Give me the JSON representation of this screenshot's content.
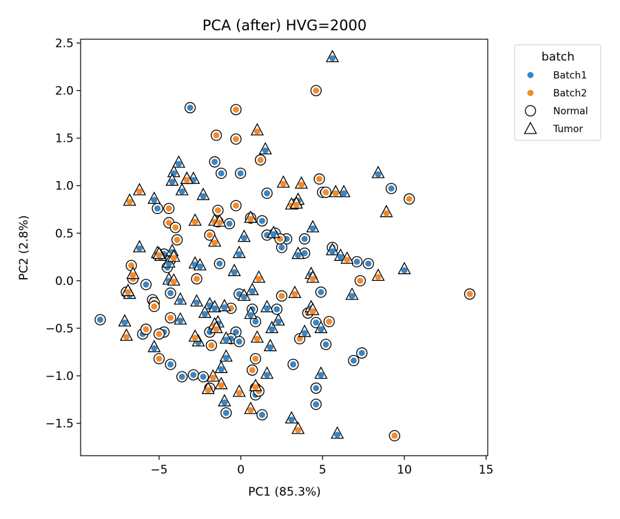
{
  "chart_data": {
    "type": "scatter",
    "title": "PCA (after) HVG=2000",
    "xlabel": "PC1 (85.3%)",
    "ylabel": "PC2 (2.8%)",
    "xlim": [
      -9.8,
      15.1
    ],
    "ylim": [
      -1.84,
      2.54
    ],
    "xticks": [
      -5,
      0,
      5,
      10,
      15
    ],
    "xtick_labels": [
      "−5",
      "0",
      "5",
      "10",
      "15"
    ],
    "yticks": [
      -1.5,
      -1.0,
      -0.5,
      0.0,
      0.5,
      1.0,
      1.5,
      2.0,
      2.5
    ],
    "ytick_labels": [
      "−1.5",
      "−1.0",
      "−0.5",
      "0.0",
      "0.5",
      "1.0",
      "1.5",
      "2.0",
      "2.5"
    ],
    "grid": false,
    "legend": {
      "title": "batch",
      "placement": "outside-top-right",
      "color_entries": [
        {
          "label": "Batch1",
          "color": "#3a85c2"
        },
        {
          "label": "Batch2",
          "color": "#f58a2b"
        }
      ],
      "shape_entries": [
        {
          "label": "Normal",
          "marker": "circle"
        },
        {
          "label": "Tumor",
          "marker": "triangle"
        }
      ]
    },
    "colors": {
      "Batch1": "#3a85c2",
      "Batch2": "#f58a2b",
      "outline": "#000000"
    },
    "series": [
      {
        "name": "Batch1",
        "condition": "Normal",
        "points": [
          [
            -3.1,
            1.82
          ],
          [
            -1.6,
            1.25
          ],
          [
            -1.2,
            1.13
          ],
          [
            -0.02,
            1.13
          ],
          [
            1.6,
            0.92
          ],
          [
            -5.1,
            0.76
          ],
          [
            -0.7,
            0.6
          ],
          [
            1.3,
            0.63
          ],
          [
            1.6,
            0.48
          ],
          [
            2.1,
            0.5
          ],
          [
            2.8,
            0.44
          ],
          [
            3.9,
            0.44
          ],
          [
            2.5,
            0.35
          ],
          [
            3.9,
            0.29
          ],
          [
            5.6,
            0.35
          ],
          [
            7.1,
            0.2
          ],
          [
            7.8,
            0.18
          ],
          [
            9.2,
            0.97
          ],
          [
            5.0,
            0.93
          ],
          [
            -4.7,
            0.28
          ],
          [
            -4.3,
            0.22
          ],
          [
            -4.5,
            0.14
          ],
          [
            -1.3,
            0.18
          ],
          [
            -4.3,
            -0.13
          ],
          [
            -0.1,
            -0.14
          ],
          [
            4.9,
            -0.12
          ],
          [
            -5.8,
            -0.04
          ],
          [
            -7.0,
            -0.12
          ],
          [
            -8.6,
            -0.41
          ],
          [
            -5.4,
            -0.2
          ],
          [
            0.7,
            -0.3
          ],
          [
            0.9,
            -0.43
          ],
          [
            2.2,
            -0.3
          ],
          [
            4.6,
            -0.44
          ],
          [
            -0.3,
            -0.54
          ],
          [
            -0.6,
            -0.61
          ],
          [
            -0.1,
            -0.64
          ],
          [
            -1.9,
            -0.54
          ],
          [
            -6.0,
            -0.56
          ],
          [
            -4.7,
            -0.54
          ],
          [
            5.2,
            -0.67
          ],
          [
            6.9,
            -0.84
          ],
          [
            7.4,
            -0.76
          ],
          [
            -4.3,
            -0.88
          ],
          [
            -3.6,
            -1.01
          ],
          [
            -2.9,
            -0.99
          ],
          [
            -2.3,
            -1.01
          ],
          [
            3.2,
            -0.88
          ],
          [
            0.9,
            -1.13
          ],
          [
            4.6,
            -1.13
          ],
          [
            4.6,
            -1.3
          ],
          [
            1.3,
            -1.41
          ],
          [
            -0.9,
            -1.39
          ],
          [
            0.9,
            -1.2
          ]
        ]
      },
      {
        "name": "Batch2",
        "condition": "Normal",
        "points": [
          [
            4.6,
            2.0
          ],
          [
            -0.3,
            1.8
          ],
          [
            -1.5,
            1.53
          ],
          [
            -0.3,
            1.49
          ],
          [
            1.2,
            1.27
          ],
          [
            4.8,
            1.07
          ],
          [
            5.2,
            0.93
          ],
          [
            10.3,
            0.86
          ],
          [
            3.4,
            0.81
          ],
          [
            -4.4,
            0.76
          ],
          [
            -1.4,
            0.74
          ],
          [
            -0.3,
            0.79
          ],
          [
            -4.4,
            0.61
          ],
          [
            -4.0,
            0.56
          ],
          [
            -1.4,
            0.62
          ],
          [
            -3.9,
            0.43
          ],
          [
            -1.9,
            0.48
          ],
          [
            0.6,
            0.66
          ],
          [
            2.4,
            0.44
          ],
          [
            -6.7,
            0.16
          ],
          [
            -6.6,
            0.02
          ],
          [
            -2.7,
            0.02
          ],
          [
            7.3,
            0.0
          ],
          [
            -5.3,
            -0.23
          ],
          [
            -5.3,
            -0.27
          ],
          [
            -0.6,
            -0.29
          ],
          [
            2.5,
            -0.16
          ],
          [
            4.1,
            -0.34
          ],
          [
            5.4,
            -0.43
          ],
          [
            -5.8,
            -0.51
          ],
          [
            -5.0,
            -0.56
          ],
          [
            -4.3,
            -0.39
          ],
          [
            -1.8,
            -0.68
          ],
          [
            3.6,
            -0.61
          ],
          [
            -5.0,
            -0.82
          ],
          [
            0.9,
            -0.82
          ],
          [
            0.7,
            -0.94
          ],
          [
            -1.9,
            -1.13
          ],
          [
            1.1,
            -1.16
          ],
          [
            14.0,
            -0.14
          ],
          [
            9.4,
            -1.63
          ]
        ]
      },
      {
        "name": "Batch1",
        "condition": "Tumor",
        "points": [
          [
            5.6,
            2.35
          ],
          [
            1.5,
            1.38
          ],
          [
            -3.8,
            1.24
          ],
          [
            -4.1,
            1.14
          ],
          [
            -4.2,
            1.05
          ],
          [
            -3.3,
            1.07
          ],
          [
            -2.9,
            1.07
          ],
          [
            -3.6,
            0.95
          ],
          [
            -2.3,
            0.9
          ],
          [
            6.3,
            0.93
          ],
          [
            8.4,
            1.13
          ],
          [
            -5.3,
            0.86
          ],
          [
            3.5,
            0.85
          ],
          [
            4.4,
            0.56
          ],
          [
            2.0,
            0.5
          ],
          [
            0.2,
            0.46
          ],
          [
            -6.2,
            0.35
          ],
          [
            -5.1,
            0.29
          ],
          [
            -4.9,
            0.26
          ],
          [
            -4.2,
            0.31
          ],
          [
            -0.1,
            0.29
          ],
          [
            5.6,
            0.32
          ],
          [
            6.1,
            0.26
          ],
          [
            3.5,
            0.28
          ],
          [
            -4.4,
            0.19
          ],
          [
            -2.8,
            0.18
          ],
          [
            -0.4,
            0.1
          ],
          [
            4.3,
            0.07
          ],
          [
            10.0,
            0.12
          ],
          [
            -4.4,
            0.01
          ],
          [
            -2.5,
            0.16
          ],
          [
            -6.8,
            -0.14
          ],
          [
            -3.7,
            -0.2
          ],
          [
            -2.7,
            -0.22
          ],
          [
            -1.9,
            -0.25
          ],
          [
            -1.6,
            -0.28
          ],
          [
            -1.0,
            -0.27
          ],
          [
            0.2,
            -0.16
          ],
          [
            0.7,
            -0.1
          ],
          [
            1.6,
            -0.28
          ],
          [
            4.3,
            -0.28
          ],
          [
            6.8,
            -0.15
          ],
          [
            -2.2,
            -0.34
          ],
          [
            -1.4,
            -0.44
          ],
          [
            -3.7,
            -0.41
          ],
          [
            0.6,
            -0.35
          ],
          [
            1.9,
            -0.5
          ],
          [
            2.3,
            -0.42
          ],
          [
            3.9,
            -0.54
          ],
          [
            4.9,
            -0.5
          ],
          [
            -7.1,
            -0.43
          ],
          [
            -2.6,
            -0.64
          ],
          [
            -0.9,
            -0.61
          ],
          [
            1.8,
            -0.69
          ],
          [
            -5.3,
            -0.7
          ],
          [
            -0.9,
            -0.8
          ],
          [
            -1.2,
            -0.92
          ],
          [
            1.6,
            -0.98
          ],
          [
            4.9,
            -0.98
          ],
          [
            -1.0,
            -1.27
          ],
          [
            3.1,
            -1.45
          ],
          [
            5.9,
            -1.61
          ]
        ]
      },
      {
        "name": "Batch2",
        "condition": "Tumor",
        "points": [
          [
            1.0,
            1.58
          ],
          [
            -6.2,
            0.95
          ],
          [
            -3.3,
            1.07
          ],
          [
            2.6,
            1.03
          ],
          [
            3.7,
            1.02
          ],
          [
            -6.8,
            0.84
          ],
          [
            3.1,
            0.8
          ],
          [
            3.4,
            0.81
          ],
          [
            -2.8,
            0.63
          ],
          [
            -1.6,
            0.63
          ],
          [
            -1.3,
            0.62
          ],
          [
            5.8,
            0.93
          ],
          [
            8.9,
            0.72
          ],
          [
            0.6,
            0.66
          ],
          [
            -1.6,
            0.41
          ],
          [
            -4.1,
            0.25
          ],
          [
            -5.0,
            0.28
          ],
          [
            6.5,
            0.23
          ],
          [
            8.4,
            0.05
          ],
          [
            -6.6,
            0.07
          ],
          [
            -4.1,
            0.0
          ],
          [
            1.1,
            0.03
          ],
          [
            4.4,
            0.03
          ],
          [
            -6.9,
            -0.11
          ],
          [
            3.3,
            -0.13
          ],
          [
            4.4,
            -0.31
          ],
          [
            -1.6,
            -0.46
          ],
          [
            -1.5,
            -0.5
          ],
          [
            -7.0,
            -0.58
          ],
          [
            -2.8,
            -0.59
          ],
          [
            1.0,
            -0.6
          ],
          [
            -1.7,
            -1.01
          ],
          [
            -2.0,
            -1.14
          ],
          [
            -1.2,
            -1.09
          ],
          [
            0.9,
            -1.11
          ],
          [
            0.6,
            -1.35
          ],
          [
            -0.1,
            -1.17
          ],
          [
            3.5,
            -1.56
          ]
        ]
      }
    ]
  }
}
